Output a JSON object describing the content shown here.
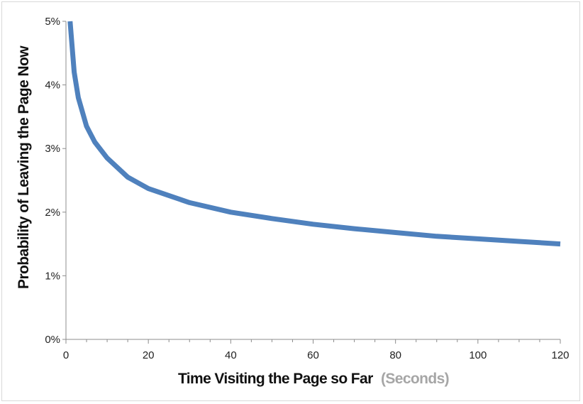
{
  "chart_data": {
    "type": "line",
    "xlabel": "Time Visiting the Page so Far",
    "xlabel_unit": "(Seconds)",
    "ylabel": "Probability of Leaving the Page Now",
    "xlim": [
      0,
      120
    ],
    "ylim": [
      0,
      5
    ],
    "x_ticks": [
      0,
      20,
      40,
      60,
      80,
      100,
      120
    ],
    "y_ticks": [
      0,
      1,
      2,
      3,
      4,
      5
    ],
    "y_tick_labels": [
      "0%",
      "1%",
      "2%",
      "3%",
      "4%",
      "5%"
    ],
    "grid": false,
    "legend": "none",
    "series": [
      {
        "color": "#4f81bd",
        "x": [
          1,
          2,
          3,
          5,
          7,
          10,
          15,
          20,
          30,
          40,
          50,
          60,
          70,
          80,
          90,
          100,
          110,
          120
        ],
        "y": [
          5.0,
          4.2,
          3.8,
          3.35,
          3.1,
          2.85,
          2.55,
          2.37,
          2.15,
          2.0,
          1.9,
          1.81,
          1.74,
          1.68,
          1.62,
          1.58,
          1.54,
          1.5
        ]
      }
    ]
  }
}
